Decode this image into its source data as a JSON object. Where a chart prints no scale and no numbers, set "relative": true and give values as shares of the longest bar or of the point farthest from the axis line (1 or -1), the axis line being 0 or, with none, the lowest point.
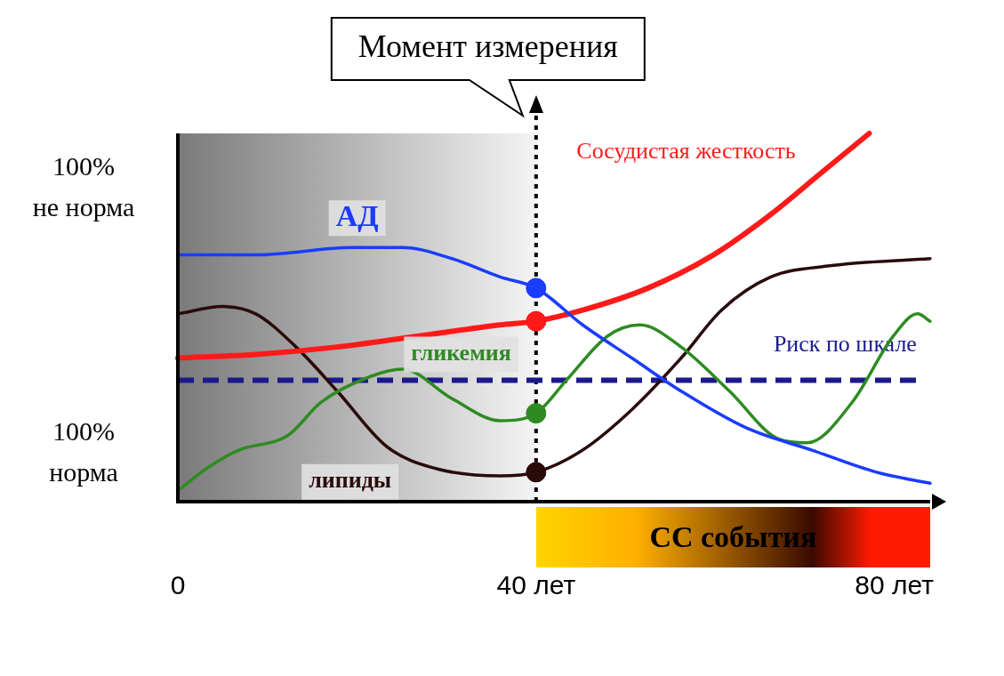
{
  "chart_data": {
    "type": "line",
    "relative": true,
    "series": [
      {
        "name": "АД",
        "color": "#1a3cff",
        "x": [
          0,
          8.7,
          19.6,
          25.1,
          30.6,
          36,
          40,
          45.2,
          50.7,
          56.2,
          63.5,
          70.8,
          78,
          84
        ],
        "values": [
          0.67,
          0.67,
          0.69,
          0.69,
          0.66,
          0.61,
          0.58,
          0.48,
          0.39,
          0.3,
          0.2,
          0.14,
          0.08,
          0.05
        ]
      },
      {
        "name": "Сосудистая жесткость",
        "color": "#ff1a1a",
        "x": [
          0,
          8.7,
          17.8,
          26.9,
          36,
          40,
          45.2,
          52.5,
          59.8,
          66.2,
          71.7,
          77.2
        ],
        "values": [
          0.39,
          0.4,
          0.42,
          0.45,
          0.48,
          0.49,
          0.52,
          0.58,
          0.67,
          0.78,
          0.89,
          1
        ]
      },
      {
        "name": "гликемия",
        "color": "#2e8b22",
        "x": [
          0,
          3.2,
          6.8,
          12.3,
          16,
          21.5,
          25.1,
          30.6,
          36,
          40,
          43.4,
          48,
          51.6,
          56.2,
          61.6,
          67.1,
          70.3,
          75.3,
          79.9,
          82.6,
          84
        ],
        "values": [
          0.03,
          0.09,
          0.14,
          0.18,
          0.27,
          0.34,
          0.36,
          0.28,
          0.22,
          0.24,
          0.33,
          0.45,
          0.48,
          0.42,
          0.3,
          0.17,
          0.16,
          0.27,
          0.45,
          0.51,
          0.49
        ]
      },
      {
        "name": "липиды",
        "color": "#2a0a0a",
        "x": [
          0,
          5,
          8.7,
          13.2,
          17.8,
          23.3,
          28.8,
          36,
          40,
          45.2,
          50.7,
          56.2,
          60.7,
          66.2,
          72.6,
          84
        ],
        "values": [
          0.51,
          0.53,
          0.51,
          0.42,
          0.3,
          0.15,
          0.09,
          0.07,
          0.08,
          0.14,
          0.25,
          0.39,
          0.52,
          0.61,
          0.64,
          0.66
        ]
      },
      {
        "type": "scatter",
        "x": [
          40,
          40,
          40,
          40
        ],
        "values": [
          0.58,
          0.49,
          0.24,
          0.08
        ],
        "colors": [
          "#1a3cff",
          "#ff1a1a",
          "#2e8b22",
          "#2a0a0a"
        ],
        "marker": "circle"
      }
    ],
    "xlim": [
      0,
      84
    ],
    "xticks": [
      0,
      {
        "value": 40,
        "label": "40 лет"
      },
      {
        "value": 80,
        "label": "80 лет"
      }
    ],
    "annotations": [
      "100% не норма",
      "100% норма",
      "СС события"
    ],
    "ref_lines": [
      {
        "axis": "x",
        "value": 40,
        "label": "Момент измерения",
        "color": "#000000",
        "line_style": "dotted"
      },
      {
        "axis": "y",
        "value": 0.33,
        "label": "Риск по шкале",
        "color": "#1a1a8c",
        "line_style": "dashed"
      }
    ],
    "bands": [
      {
        "axis": "x",
        "from": 0,
        "to": 40,
        "color": "#7a7a7a"
      }
    ],
    "marker": "none",
    "line_style": "solid",
    "grid": false,
    "legend": false
  }
}
